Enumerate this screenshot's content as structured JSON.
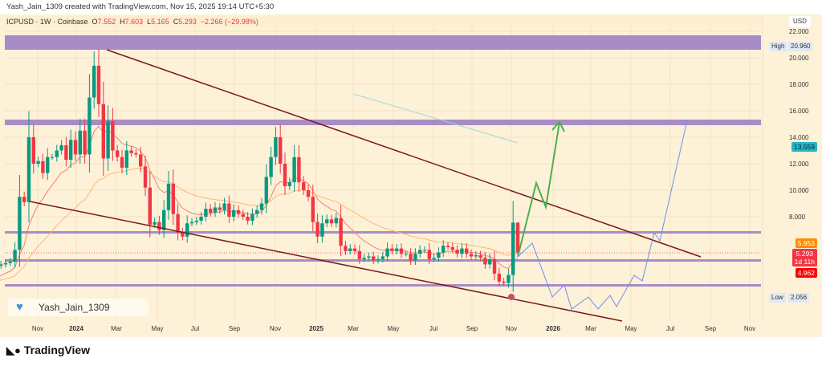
{
  "header": {
    "caption": "Yash_Jain_1309 created with TradingView.com, Nov 15, 2025 19:14 UTC+5:30"
  },
  "legend": {
    "symbol": "ICPUSD · 1W · Coinbase",
    "o_label": "O",
    "o": "7.552",
    "h_label": "H",
    "h": "7.603",
    "l_label": "L",
    "l": "5.165",
    "c_label": "C",
    "c": "5.293",
    "change": "−2.266 (−29.98%)"
  },
  "price_axis": {
    "currency": "USD",
    "ticks": [
      "22.000",
      "20.000",
      "18.000",
      "16.000",
      "14.000",
      "12.000",
      "10.000",
      "8.000"
    ],
    "high_label": "High",
    "high": "20.960",
    "low_label": "Low",
    "low": "2.056",
    "tag_teal": "13.559",
    "tag_orange": "5.953",
    "tag_last": "5.293",
    "tag_countdown": "1d 11h",
    "tag_red": "4.962"
  },
  "time_axis": [
    "Nov",
    "2024",
    "Mar",
    "May",
    "Jul",
    "Sep",
    "Nov",
    "2025",
    "Mar",
    "May",
    "Jul",
    "Sep",
    "Nov",
    "2026",
    "Mar",
    "May",
    "Jul",
    "Sep",
    "Nov"
  ],
  "watermark": "Yash_Jain_1309",
  "footer": {
    "brand": "TradingView",
    "logo": "17"
  },
  "colors": {
    "up": "#089981",
    "down": "#f23645",
    "background": "#fdf1d8",
    "band": "#a98bc7",
    "trendline": "#7a1a1a",
    "projection_green": "#4caf50",
    "projection_blue": "#6d8ff0"
  },
  "chart_data": {
    "type": "candlestick",
    "interval": "1W",
    "symbol": "ICPUSD",
    "ylim": [
      0,
      23
    ],
    "closes": [
      3.0,
      3.1,
      3.0,
      3.1,
      3.2,
      3.6,
      4.3,
      4.4,
      4.5,
      4.6,
      5.5,
      9.5,
      9.1,
      14.0,
      12.0,
      12.2,
      11.3,
      12.5,
      12.5,
      13.0,
      13.4,
      12.3,
      13.8,
      12.7,
      14.5,
      12.7,
      17.0,
      19.4,
      16.5,
      12.4,
      15.2,
      13.0,
      12.5,
      11.7,
      13.0,
      12.8,
      12.7,
      11.8,
      10.2,
      7.4,
      7.6,
      7.0,
      8.5,
      10.5,
      8.2,
      6.8,
      6.5,
      7.5,
      7.6,
      7.7,
      8.0,
      8.6,
      8.3,
      8.7,
      8.5,
      9.0,
      8.0,
      8.5,
      8.2,
      8.0,
      7.7,
      8.2,
      8.5,
      9.0,
      11.0,
      12.5,
      14.0,
      12.0,
      10.3,
      10.6,
      12.5,
      10.6,
      10.0,
      9.5,
      7.6,
      6.5,
      7.5,
      7.8,
      7.5,
      7.9,
      5.8,
      5.4,
      5.6,
      5.4,
      4.8,
      4.9,
      5.0,
      4.7,
      4.8,
      5.0,
      5.6,
      5.4,
      5.6,
      5.2,
      5.2,
      4.7,
      5.2,
      5.5,
      5.5,
      4.8,
      4.9,
      5.3,
      5.8,
      5.7,
      5.5,
      5.2,
      5.6,
      5.2,
      5.0,
      5.1,
      4.9,
      4.4,
      4.8,
      3.7,
      3.1,
      3.0,
      3.6,
      7.552,
      5.293
    ],
    "last": {
      "open": 7.552,
      "high": 7.603,
      "low": 5.165,
      "close": 5.293
    }
  }
}
